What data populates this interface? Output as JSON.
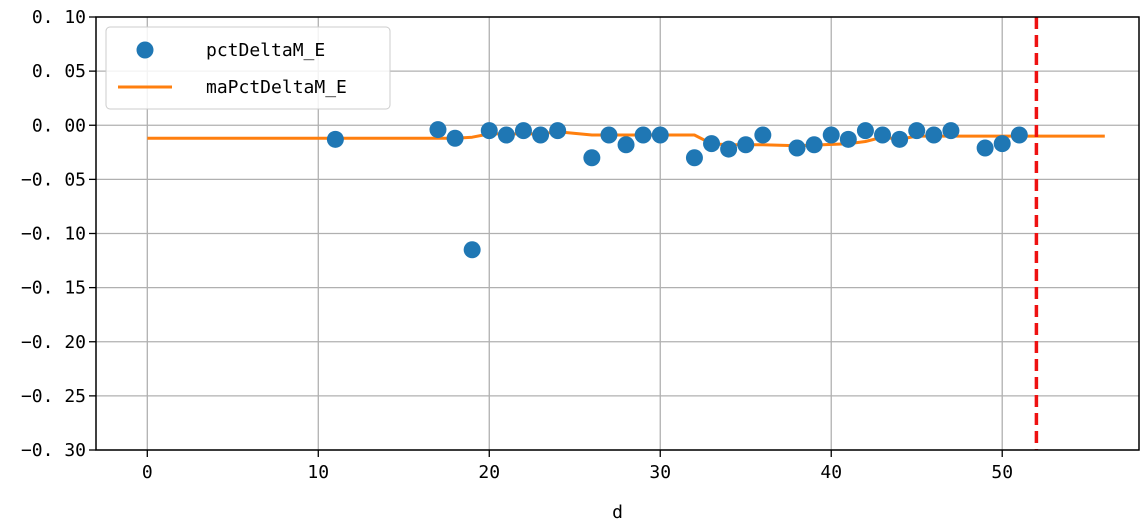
{
  "chart_data": {
    "type": "scatter",
    "xlabel": "d",
    "ylabel": "",
    "xlim": [
      -3,
      58
    ],
    "ylim": [
      -0.3,
      0.1
    ],
    "x_ticks": [
      0,
      10,
      20,
      30,
      40,
      50
    ],
    "x_tick_labels": [
      "0",
      "10",
      "20",
      "30",
      "40",
      "50"
    ],
    "y_ticks": [
      0.1,
      0.05,
      0.0,
      -0.05,
      -0.1,
      -0.15,
      -0.2,
      -0.25,
      -0.3
    ],
    "y_tick_labels": [
      "0. 10",
      "0. 05",
      "0. 00",
      "−0. 05",
      "−0. 10",
      "−0. 15",
      "−0. 20",
      "−0. 25",
      "−0. 30"
    ],
    "grid": true,
    "legend_position": "top-left",
    "series": [
      {
        "name": "pctDeltaM_E",
        "kind": "scatter",
        "color": "#1f77b4",
        "x": [
          11,
          17,
          18,
          19,
          20,
          21,
          22,
          23,
          24,
          26,
          27,
          28,
          29,
          30,
          32,
          33,
          34,
          35,
          36,
          38,
          39,
          40,
          41,
          42,
          43,
          44,
          45,
          46,
          47,
          49,
          50,
          51
        ],
        "y": [
          -0.013,
          -0.004,
          -0.012,
          -0.115,
          -0.005,
          -0.009,
          -0.005,
          -0.009,
          -0.005,
          -0.03,
          -0.009,
          -0.018,
          -0.009,
          -0.009,
          -0.03,
          -0.017,
          -0.022,
          -0.018,
          -0.009,
          -0.021,
          -0.018,
          -0.009,
          -0.013,
          -0.005,
          -0.009,
          -0.013,
          -0.005,
          -0.009,
          -0.005,
          -0.021,
          -0.017,
          -0.009
        ]
      },
      {
        "name": "maPctDeltaM_E",
        "kind": "line",
        "color": "#ff7f0e",
        "x": [
          0,
          11,
          17,
          18,
          19,
          20,
          21,
          22,
          23,
          24,
          26,
          30,
          32,
          33,
          34,
          36,
          38,
          41,
          42,
          43,
          44,
          45,
          49,
          51,
          56
        ],
        "y": [
          -0.012,
          -0.012,
          -0.012,
          -0.012,
          -0.011,
          -0.008,
          -0.008,
          -0.008,
          -0.008,
          -0.006,
          -0.009,
          -0.009,
          -0.009,
          -0.017,
          -0.018,
          -0.018,
          -0.019,
          -0.017,
          -0.015,
          -0.011,
          -0.013,
          -0.01,
          -0.01,
          -0.01,
          -0.01
        ]
      }
    ],
    "vline": {
      "x": 52,
      "color": "#ee1111",
      "style": "dashed"
    }
  }
}
